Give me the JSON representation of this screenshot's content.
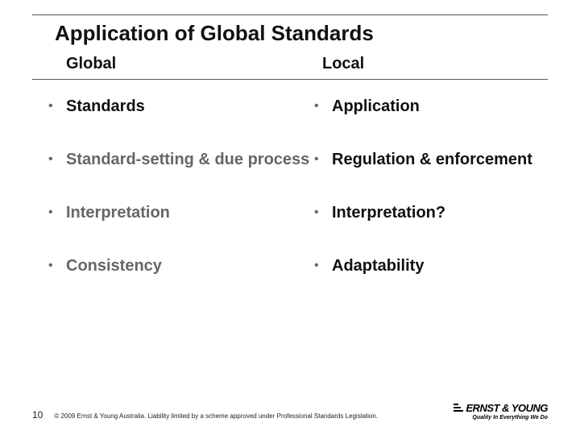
{
  "title": "Application of Global Standards",
  "columns": {
    "left": "Global",
    "right": "Local"
  },
  "rows": [
    {
      "left": "Standards",
      "left_dark": true,
      "right": "Application",
      "right_dark": true
    },
    {
      "left": "Standard-setting & due process",
      "left_dark": false,
      "right": "Regulation & enforcement",
      "right_dark": true
    },
    {
      "left": "Interpretation",
      "left_dark": false,
      "right": "Interpretation?",
      "right_dark": true
    },
    {
      "left": "Consistency",
      "left_dark": false,
      "right": "Adaptability",
      "right_dark": true
    }
  ],
  "page_number": "10",
  "copyright": "© 2009 Ernst & Young Australia. Liability limited by a scheme approved under Professional Standards Legislation.",
  "logo": {
    "name": "ERNST & YOUNG",
    "tagline": "Quality In Everything We Do"
  },
  "colors": {
    "text_dark": "#111111",
    "text_muted": "#666666",
    "rule": "#555555",
    "background": "#ffffff"
  },
  "fonts": {
    "title_size_pt": 20,
    "item_size_pt": 15,
    "weight": 700
  }
}
